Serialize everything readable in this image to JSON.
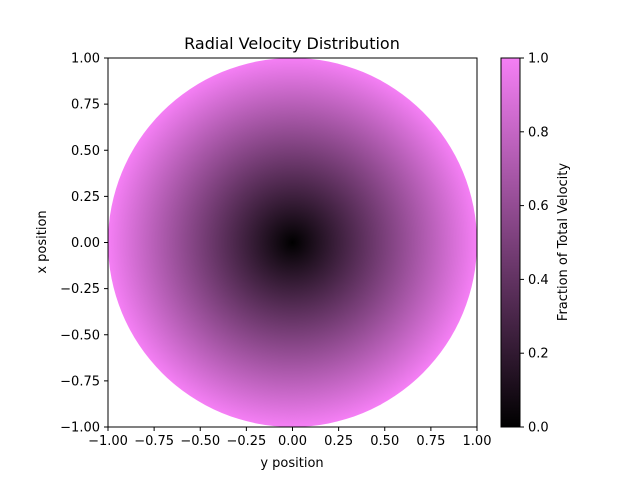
{
  "chart_data": {
    "type": "heatmap",
    "title": "Radial Velocity Distribution",
    "xlabel": "y position",
    "ylabel": "x position",
    "xlim": [
      -1.0,
      1.0
    ],
    "ylim": [
      -1.0,
      1.0
    ],
    "x_ticks": [
      "−1.00",
      "−0.75",
      "−0.50",
      "−0.25",
      "0.00",
      "0.25",
      "0.50",
      "0.75",
      "1.00"
    ],
    "y_ticks": [
      "−1.00",
      "−0.75",
      "−0.50",
      "−0.25",
      "0.00",
      "0.25",
      "0.50",
      "0.75",
      "1.00"
    ],
    "field": {
      "domain": "circle of radius 1 centered at (0, 0)",
      "value_at_center": 0.0,
      "value_at_edge": 1.0
    },
    "colorbar": {
      "label": "Fraction of Total Velocity",
      "range": [
        0.0,
        1.0
      ],
      "ticks": [
        "0.0",
        "0.2",
        "0.4",
        "0.6",
        "0.8",
        "1.0"
      ],
      "color_low": "#000000",
      "color_high": "#f57ff5"
    },
    "grid": false
  }
}
